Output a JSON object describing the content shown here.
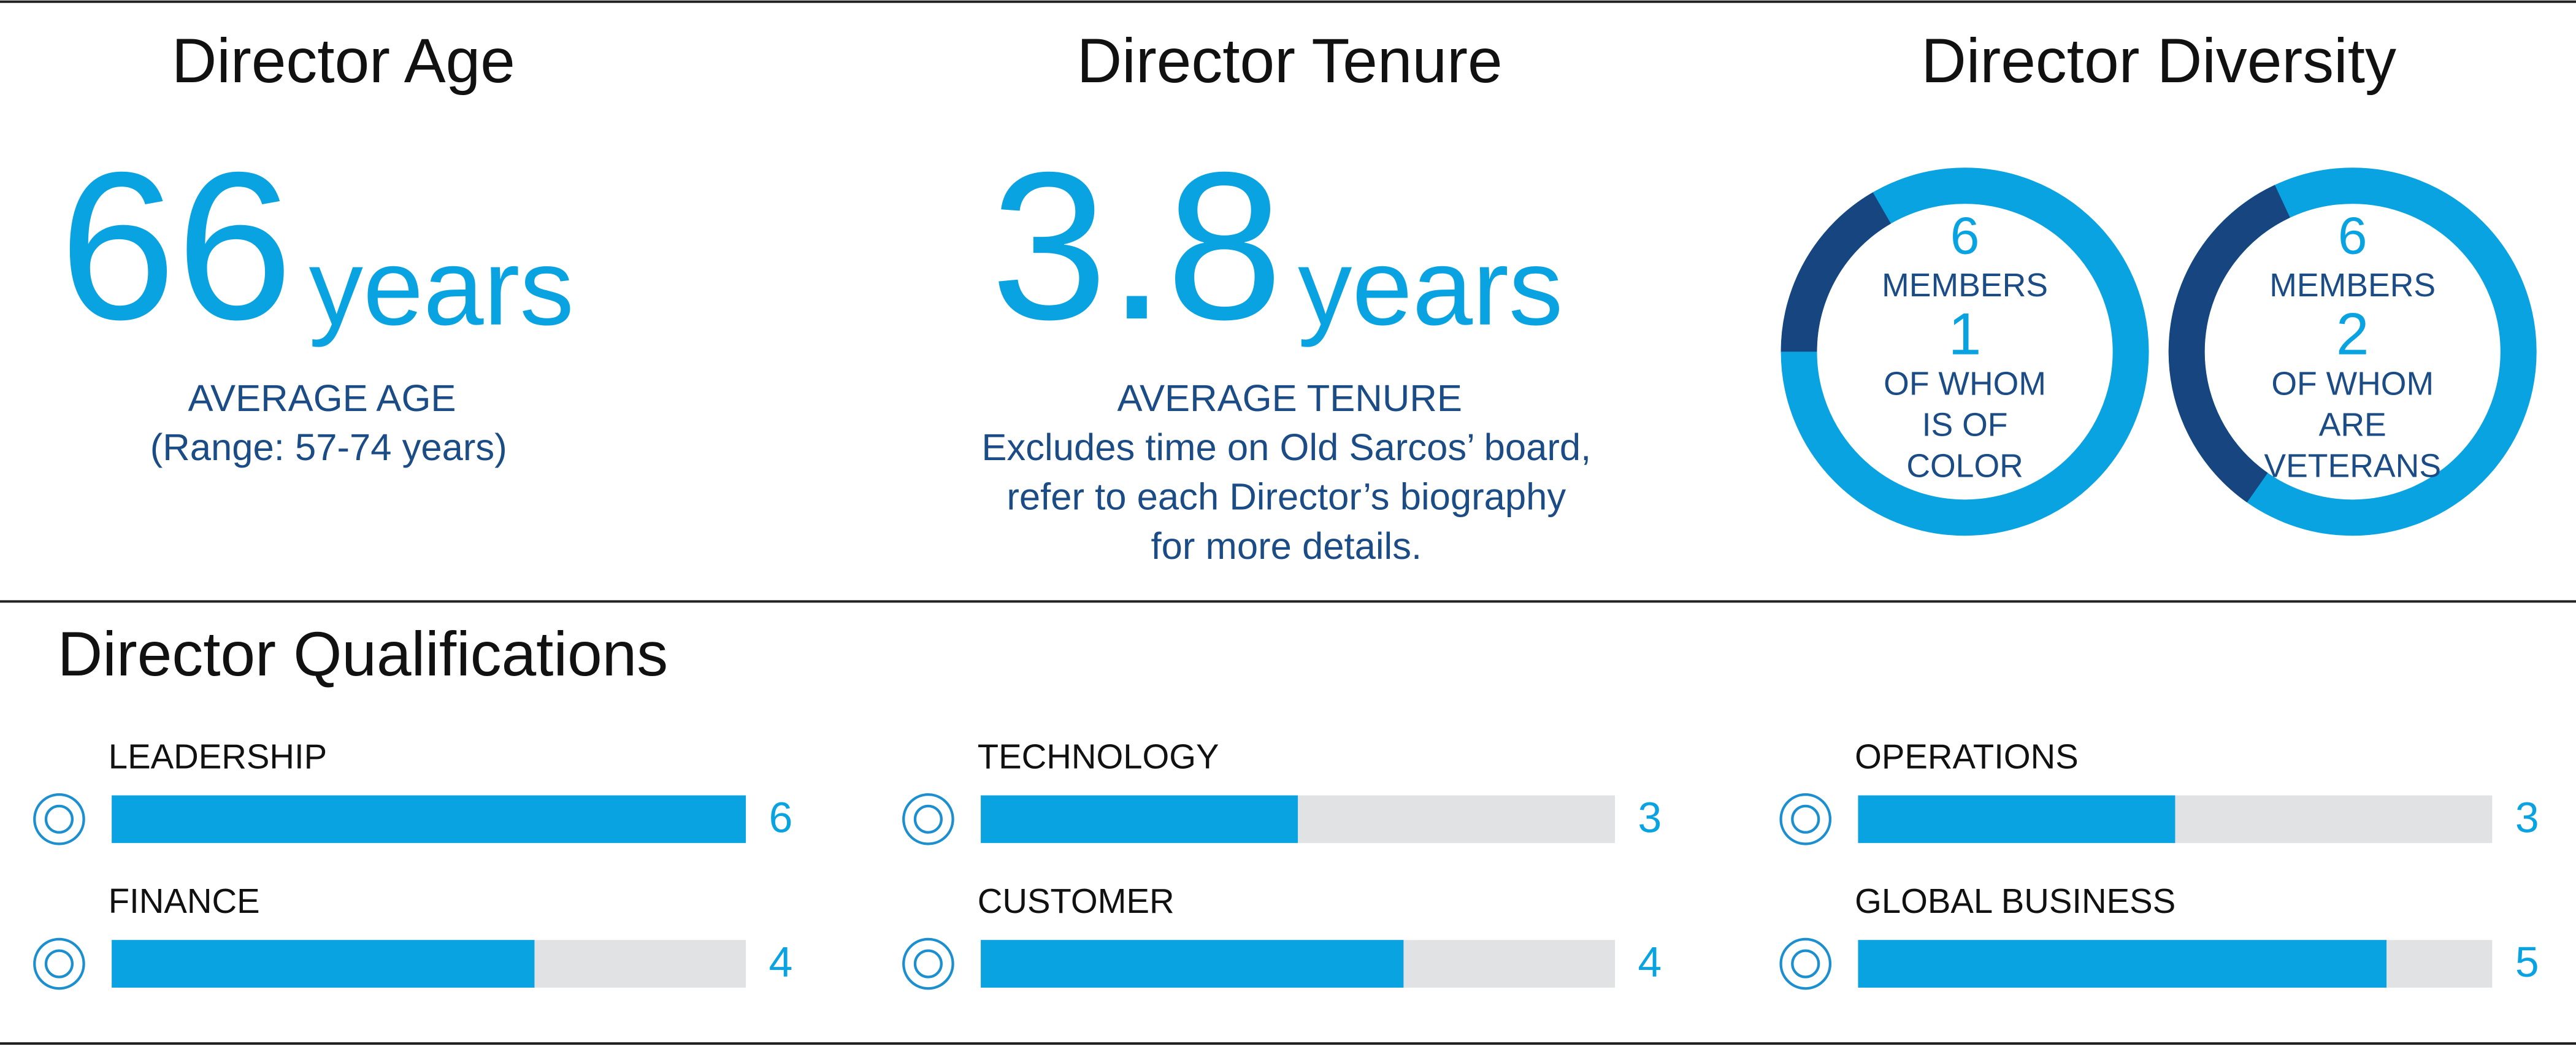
{
  "age": {
    "title": "Director Age",
    "value": 66,
    "unit": "years",
    "label": "AVERAGE AGE",
    "note": "(Range: 57-74 years)"
  },
  "tenure": {
    "title": "Director Tenure",
    "value": 3.8,
    "unit": "years",
    "label": "AVERAGE TENURE",
    "note": [
      "Excludes time on Old Sarcos’ board,",
      "refer to each Director’s biography",
      "for more details."
    ]
  },
  "diversity": {
    "title": "Director Diversity",
    "donuts": [
      {
        "total": 6,
        "total_label": "MEMBERS",
        "count": 1,
        "count_label": [
          "OF WHOM",
          "IS OF",
          "COLOR"
        ]
      },
      {
        "total": 6,
        "total_label": "MEMBERS",
        "count": 2,
        "count_label": [
          "OF WHOM",
          "ARE",
          "VETERANS"
        ]
      }
    ]
  },
  "qualifications": {
    "title": "Director Qualifications",
    "items": [
      {
        "name": "LEADERSHIP",
        "value": 6
      },
      {
        "name": "TECHNOLOGY",
        "value": 3
      },
      {
        "name": "OPERATIONS",
        "value": 3
      },
      {
        "name": "FINANCE",
        "value": 4
      },
      {
        "name": "CUSTOMER",
        "value": 4
      },
      {
        "name": "GLOBAL BUSINESS",
        "value": 5
      }
    ]
  }
}
